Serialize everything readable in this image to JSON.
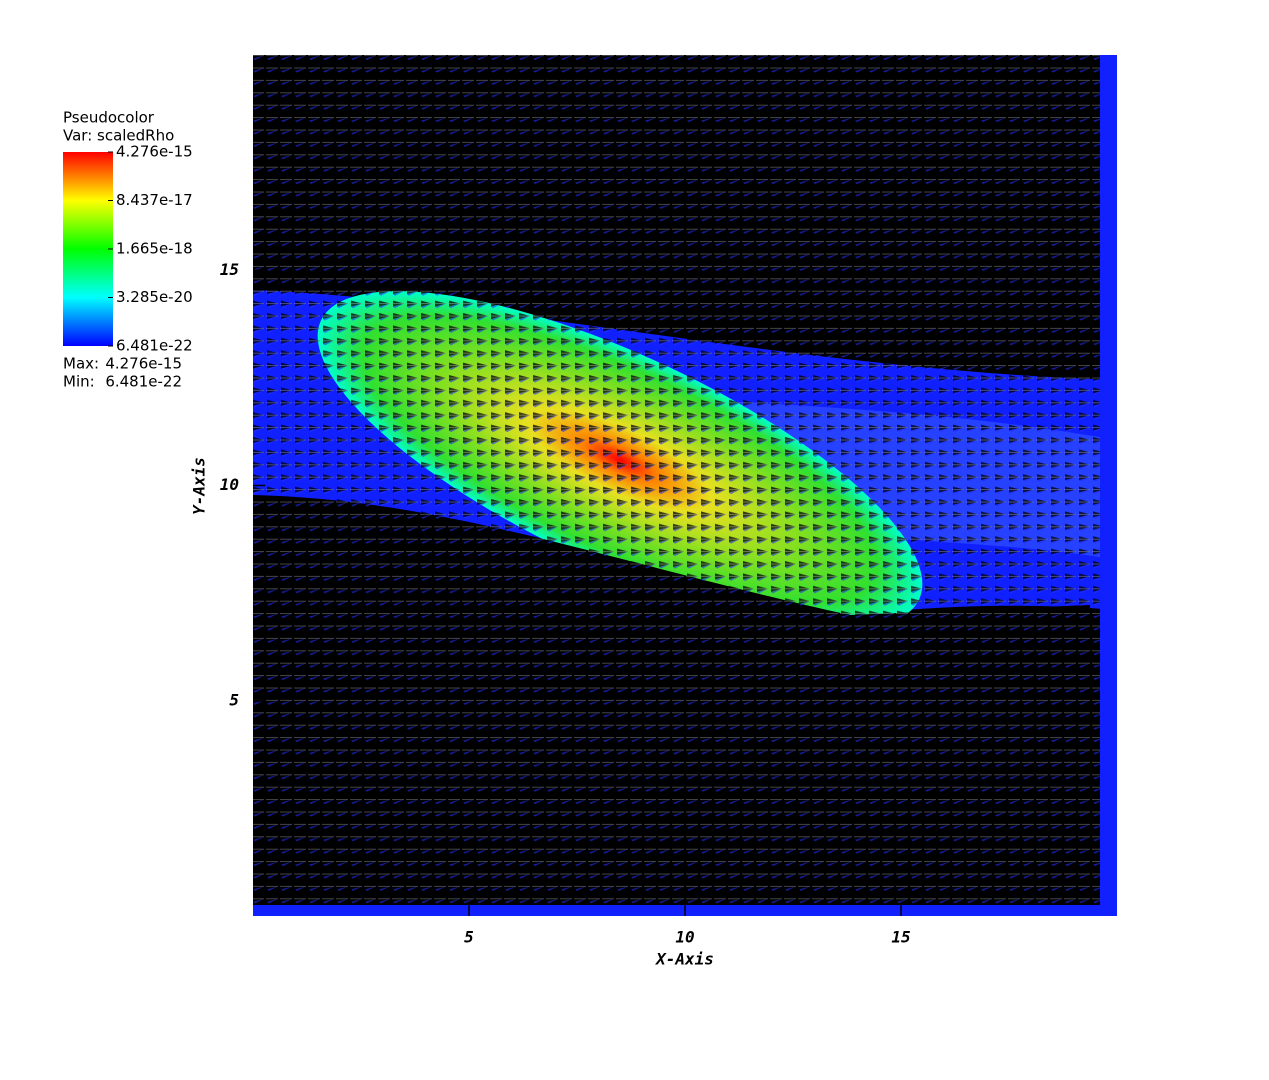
{
  "chart_data": {
    "type": "pseudocolor",
    "plot_name": "Pseudocolor",
    "variable_label": "Var: scaledRho",
    "x_label": "X-Axis",
    "y_label": "Y-Axis",
    "xlim": [
      0,
      20
    ],
    "ylim": [
      0,
      20
    ],
    "xticks": [
      5,
      10,
      15
    ],
    "yticks": [
      5,
      10,
      15
    ],
    "colorbar": {
      "scale": "log",
      "lim": [
        6.481e-22,
        4.276e-15
      ],
      "ticks": [
        4.276e-15,
        8.437e-17,
        1.665e-18,
        3.285e-20,
        6.481e-22
      ],
      "colors": [
        "#0000ff",
        "#00ffff",
        "#00ff00",
        "#ffff00",
        "#ff0000"
      ]
    },
    "max_label": "Max:",
    "max": 4.276e-15,
    "min_label": "Min:",
    "min": 6.481e-22
  }
}
